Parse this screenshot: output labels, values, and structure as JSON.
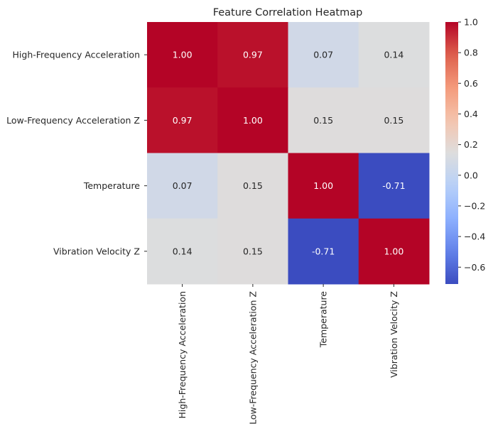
{
  "chart_data": {
    "type": "heatmap",
    "title": "Feature Correlation Heatmap",
    "row_labels": [
      "High-Frequency Acceleration",
      "Low-Frequency Acceleration Z",
      "Temperature",
      "Vibration Velocity Z"
    ],
    "col_labels": [
      "High-Frequency Acceleration",
      "Low-Frequency Acceleration Z",
      "Temperature",
      "Vibration Velocity Z"
    ],
    "values": [
      [
        1.0,
        0.97,
        0.07,
        0.14
      ],
      [
        0.97,
        1.0,
        0.15,
        0.15
      ],
      [
        0.07,
        0.15,
        1.0,
        -0.71
      ],
      [
        0.14,
        0.15,
        -0.71,
        1.0
      ]
    ],
    "value_labels": [
      [
        "1.00",
        "0.97",
        "0.07",
        "0.14"
      ],
      [
        "0.97",
        "1.00",
        "0.15",
        "0.15"
      ],
      [
        "0.07",
        "0.15",
        "1.00",
        "-0.71"
      ],
      [
        "0.14",
        "0.15",
        "-0.71",
        "1.00"
      ]
    ],
    "colormap": "coolwarm",
    "colorbar": {
      "min": -0.71,
      "max": 1.0,
      "ticks": [
        1.0,
        0.8,
        0.6,
        0.4,
        0.2,
        0.0,
        -0.2,
        -0.4,
        -0.6
      ],
      "tick_labels": [
        "1.0",
        "0.8",
        "0.6",
        "0.4",
        "0.2",
        "0.0",
        "−0.2",
        "−0.4",
        "−0.6"
      ]
    },
    "grid": false,
    "xlabel": "",
    "ylabel": ""
  }
}
